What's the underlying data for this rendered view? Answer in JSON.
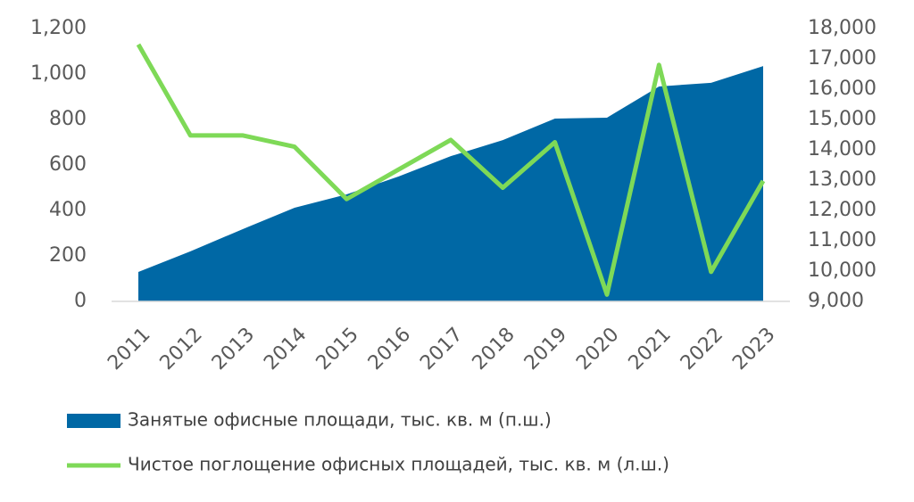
{
  "chart_data": {
    "type": "area-line",
    "categories": [
      "2011",
      "2012",
      "2013",
      "2014",
      "2015",
      "2016",
      "2017",
      "2018",
      "2019",
      "2020",
      "2021",
      "2022",
      "2023"
    ],
    "series": [
      {
        "name": "Занятые офисные площади, тыс. кв. м (п.ш.)",
        "type": "area",
        "axis": "y2",
        "color": "#0068a5",
        "values": [
          9970,
          10650,
          11380,
          12090,
          12530,
          13120,
          13790,
          14320,
          15030,
          15060,
          16090,
          16210,
          16760
        ]
      },
      {
        "name": "Чистое поглощение офисных площадей, тыс. кв. м (л.ш.)",
        "type": "line",
        "axis": "y",
        "color": "#7ed957",
        "values": [
          1130,
          730,
          730,
          680,
          450,
          580,
          710,
          500,
          700,
          30,
          1040,
          130,
          530
        ]
      }
    ],
    "ylim": [
      0,
      1200
    ],
    "yticks": [
      0,
      200,
      400,
      600,
      800,
      {
        "value": 1000,
        "label": "1,000"
      },
      {
        "value": 1200,
        "label": "1,200"
      }
    ],
    "y2lim": [
      9000,
      18000
    ],
    "y2ticks": [
      {
        "value": 9000,
        "label": "9,000"
      },
      {
        "value": 10000,
        "label": "10,000"
      },
      {
        "value": 11000,
        "label": "11,000"
      },
      {
        "value": 12000,
        "label": "12,000"
      },
      {
        "value": 13000,
        "label": "13,000"
      },
      {
        "value": 14000,
        "label": "14,000"
      },
      {
        "value": 15000,
        "label": "15,000"
      },
      {
        "value": 16000,
        "label": "16,000"
      },
      {
        "value": 17000,
        "label": "17,000"
      },
      {
        "value": 18000,
        "label": "18,000"
      }
    ]
  }
}
